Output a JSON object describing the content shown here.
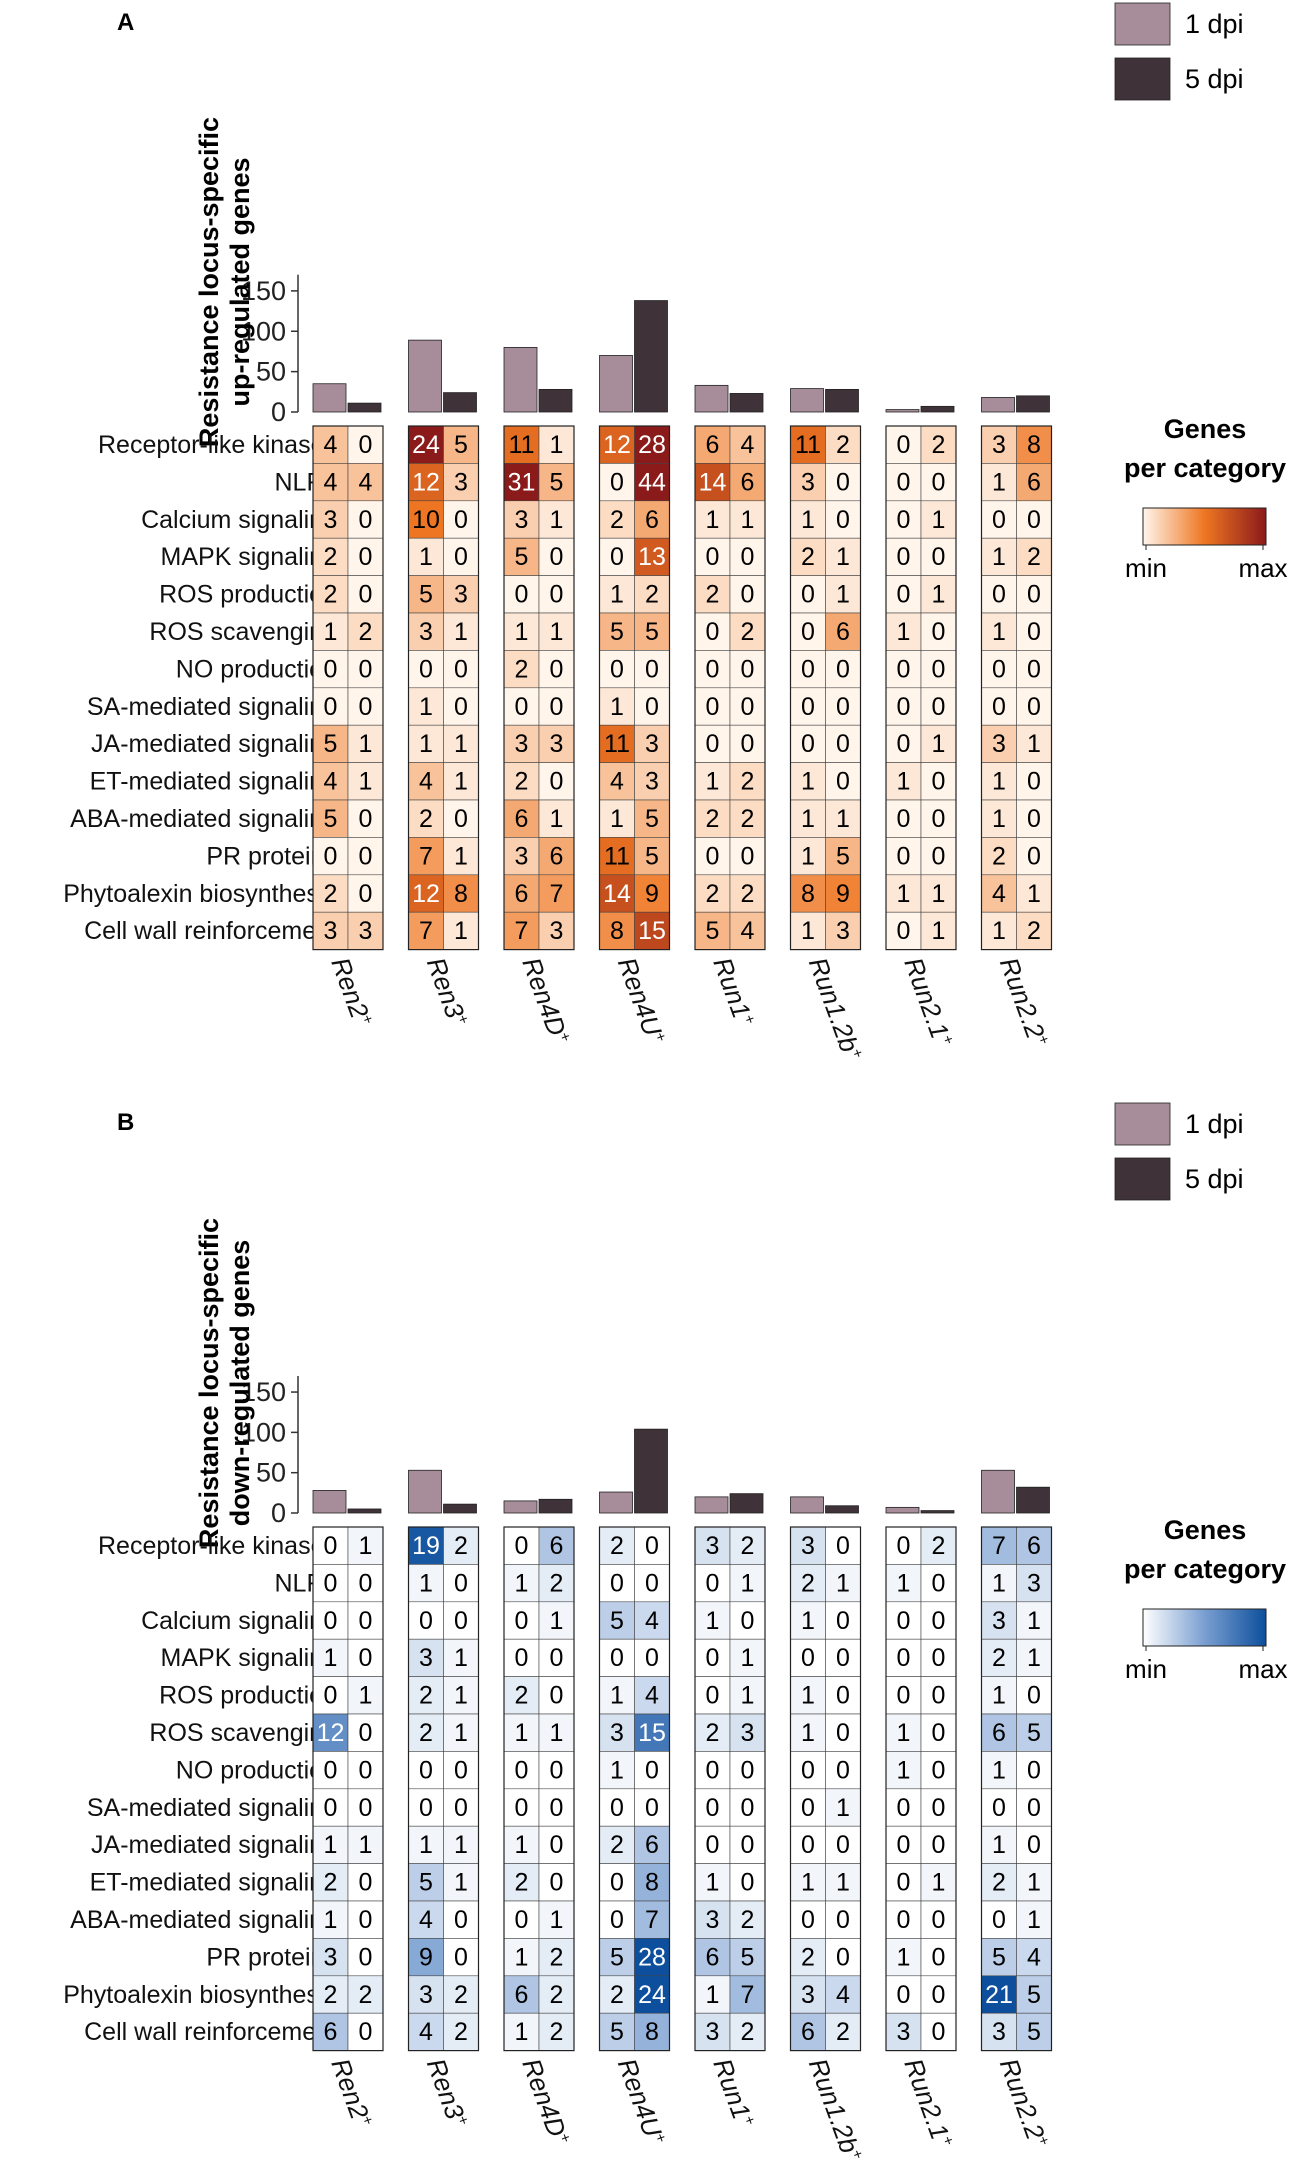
{
  "legend": {
    "bar_labels": [
      "1 dpi",
      "5 dpi"
    ],
    "bar_colors": [
      "#a78d99",
      "#3f3238"
    ],
    "heat_title": [
      "Genes",
      "per category"
    ],
    "heat_min_label": "min",
    "heat_max_label": "max"
  },
  "loci": [
    "Ren2",
    "Ren3",
    "Ren4D",
    "Ren4U",
    "Run1",
    "Run1.2b",
    "Run2.1",
    "Run2.2"
  ],
  "locus_superscript": "+",
  "categories": [
    "Receptor-like kinases",
    "NLRs",
    "Calcium signaling",
    "MAPK signaling",
    "ROS production",
    "ROS scavenging",
    "NO production",
    "SA-mediated signaling",
    "JA-mediated signaling",
    "ET-mediated signaling",
    "ABA-mediated signaling",
    "PR proteins",
    "Phytoalexin biosynthesis",
    "Cell wall reinforcement"
  ],
  "chart_data": [
    {
      "type": "bar+heatmap",
      "panel_label": "A",
      "ylabel": [
        "Resistance locus-specific",
        "up-regulated genes"
      ],
      "ylim": [
        0,
        160
      ],
      "yticks": [
        0,
        50,
        100,
        150
      ],
      "series": [
        {
          "name": "1 dpi",
          "values": [
            35,
            89,
            80,
            70,
            33,
            29,
            3,
            18
          ]
        },
        {
          "name": "5 dpi",
          "values": [
            11,
            24,
            28,
            138,
            23,
            28,
            7,
            20
          ]
        }
      ],
      "color_scale": [
        "#fff5eb",
        "#ee7622",
        "#8b1a1a"
      ],
      "heatmap": [
        [
          [
            4,
            0
          ],
          [
            24,
            5
          ],
          [
            11,
            1
          ],
          [
            12,
            28
          ],
          [
            6,
            4
          ],
          [
            11,
            2
          ],
          [
            0,
            2
          ],
          [
            3,
            8
          ]
        ],
        [
          [
            4,
            4
          ],
          [
            12,
            3
          ],
          [
            31,
            5
          ],
          [
            0,
            44
          ],
          [
            14,
            6
          ],
          [
            3,
            0
          ],
          [
            0,
            0
          ],
          [
            1,
            6
          ]
        ],
        [
          [
            3,
            0
          ],
          [
            10,
            0
          ],
          [
            3,
            1
          ],
          [
            2,
            6
          ],
          [
            1,
            1
          ],
          [
            1,
            0
          ],
          [
            0,
            1
          ],
          [
            0,
            0
          ]
        ],
        [
          [
            2,
            0
          ],
          [
            1,
            0
          ],
          [
            5,
            0
          ],
          [
            0,
            13
          ],
          [
            0,
            0
          ],
          [
            2,
            1
          ],
          [
            0,
            0
          ],
          [
            1,
            2
          ]
        ],
        [
          [
            2,
            0
          ],
          [
            5,
            3
          ],
          [
            0,
            0
          ],
          [
            1,
            2
          ],
          [
            2,
            0
          ],
          [
            0,
            1
          ],
          [
            0,
            1
          ],
          [
            0,
            0
          ]
        ],
        [
          [
            1,
            2
          ],
          [
            3,
            1
          ],
          [
            1,
            1
          ],
          [
            5,
            5
          ],
          [
            0,
            2
          ],
          [
            0,
            6
          ],
          [
            1,
            0
          ],
          [
            1,
            0
          ]
        ],
        [
          [
            0,
            0
          ],
          [
            0,
            0
          ],
          [
            2,
            0
          ],
          [
            0,
            0
          ],
          [
            0,
            0
          ],
          [
            0,
            0
          ],
          [
            0,
            0
          ],
          [
            0,
            0
          ]
        ],
        [
          [
            0,
            0
          ],
          [
            1,
            0
          ],
          [
            0,
            0
          ],
          [
            1,
            0
          ],
          [
            0,
            0
          ],
          [
            0,
            0
          ],
          [
            0,
            0
          ],
          [
            0,
            0
          ]
        ],
        [
          [
            5,
            1
          ],
          [
            1,
            1
          ],
          [
            3,
            3
          ],
          [
            11,
            3
          ],
          [
            0,
            0
          ],
          [
            0,
            0
          ],
          [
            0,
            1
          ],
          [
            3,
            1
          ]
        ],
        [
          [
            4,
            1
          ],
          [
            4,
            1
          ],
          [
            2,
            0
          ],
          [
            4,
            3
          ],
          [
            1,
            2
          ],
          [
            1,
            0
          ],
          [
            1,
            0
          ],
          [
            1,
            0
          ]
        ],
        [
          [
            5,
            0
          ],
          [
            2,
            0
          ],
          [
            6,
            1
          ],
          [
            1,
            5
          ],
          [
            2,
            2
          ],
          [
            1,
            1
          ],
          [
            0,
            0
          ],
          [
            1,
            0
          ]
        ],
        [
          [
            0,
            0
          ],
          [
            7,
            1
          ],
          [
            3,
            6
          ],
          [
            11,
            5
          ],
          [
            0,
            0
          ],
          [
            1,
            5
          ],
          [
            0,
            0
          ],
          [
            2,
            0
          ]
        ],
        [
          [
            2,
            0
          ],
          [
            12,
            8
          ],
          [
            6,
            7
          ],
          [
            14,
            9
          ],
          [
            2,
            2
          ],
          [
            8,
            9
          ],
          [
            1,
            1
          ],
          [
            4,
            1
          ]
        ],
        [
          [
            3,
            3
          ],
          [
            7,
            1
          ],
          [
            7,
            3
          ],
          [
            8,
            15
          ],
          [
            5,
            4
          ],
          [
            1,
            3
          ],
          [
            0,
            1
          ],
          [
            1,
            2
          ]
        ]
      ]
    },
    {
      "type": "bar+heatmap",
      "panel_label": "B",
      "ylabel": [
        "Resistance locus-specific",
        "down-regulated genes"
      ],
      "ylim": [
        0,
        160
      ],
      "yticks": [
        0,
        50,
        100,
        150
      ],
      "series": [
        {
          "name": "1 dpi",
          "values": [
            28,
            53,
            15,
            26,
            20,
            20,
            7,
            53
          ]
        },
        {
          "name": "5 dpi",
          "values": [
            5,
            11,
            17,
            104,
            24,
            9,
            3,
            32
          ]
        }
      ],
      "color_scale": [
        "#ffffff",
        "#7a9fd1",
        "#0d4f9c"
      ],
      "heatmap": [
        [
          [
            0,
            1
          ],
          [
            19,
            2
          ],
          [
            0,
            6
          ],
          [
            2,
            0
          ],
          [
            3,
            2
          ],
          [
            3,
            0
          ],
          [
            0,
            2
          ],
          [
            7,
            6
          ]
        ],
        [
          [
            0,
            0
          ],
          [
            1,
            0
          ],
          [
            1,
            2
          ],
          [
            0,
            0
          ],
          [
            0,
            1
          ],
          [
            2,
            1
          ],
          [
            1,
            0
          ],
          [
            1,
            3
          ]
        ],
        [
          [
            0,
            0
          ],
          [
            0,
            0
          ],
          [
            0,
            1
          ],
          [
            5,
            4
          ],
          [
            1,
            0
          ],
          [
            1,
            0
          ],
          [
            0,
            0
          ],
          [
            3,
            1
          ]
        ],
        [
          [
            1,
            0
          ],
          [
            3,
            1
          ],
          [
            0,
            0
          ],
          [
            0,
            0
          ],
          [
            0,
            1
          ],
          [
            0,
            0
          ],
          [
            0,
            0
          ],
          [
            2,
            1
          ]
        ],
        [
          [
            0,
            1
          ],
          [
            2,
            1
          ],
          [
            2,
            0
          ],
          [
            1,
            4
          ],
          [
            0,
            1
          ],
          [
            1,
            0
          ],
          [
            0,
            0
          ],
          [
            1,
            0
          ]
        ],
        [
          [
            12,
            0
          ],
          [
            2,
            1
          ],
          [
            1,
            1
          ],
          [
            3,
            15
          ],
          [
            2,
            3
          ],
          [
            1,
            0
          ],
          [
            1,
            0
          ],
          [
            6,
            5
          ]
        ],
        [
          [
            0,
            0
          ],
          [
            0,
            0
          ],
          [
            0,
            0
          ],
          [
            1,
            0
          ],
          [
            0,
            0
          ],
          [
            0,
            0
          ],
          [
            1,
            0
          ],
          [
            1,
            0
          ]
        ],
        [
          [
            0,
            0
          ],
          [
            0,
            0
          ],
          [
            0,
            0
          ],
          [
            0,
            0
          ],
          [
            0,
            0
          ],
          [
            0,
            1
          ],
          [
            0,
            0
          ],
          [
            0,
            0
          ]
        ],
        [
          [
            1,
            1
          ],
          [
            1,
            1
          ],
          [
            1,
            0
          ],
          [
            2,
            6
          ],
          [
            0,
            0
          ],
          [
            0,
            0
          ],
          [
            0,
            0
          ],
          [
            1,
            0
          ]
        ],
        [
          [
            2,
            0
          ],
          [
            5,
            1
          ],
          [
            2,
            0
          ],
          [
            0,
            8
          ],
          [
            1,
            0
          ],
          [
            1,
            1
          ],
          [
            0,
            1
          ],
          [
            2,
            1
          ]
        ],
        [
          [
            1,
            0
          ],
          [
            4,
            0
          ],
          [
            0,
            1
          ],
          [
            0,
            7
          ],
          [
            3,
            2
          ],
          [
            0,
            0
          ],
          [
            0,
            0
          ],
          [
            0,
            1
          ]
        ],
        [
          [
            3,
            0
          ],
          [
            9,
            0
          ],
          [
            1,
            2
          ],
          [
            5,
            28
          ],
          [
            6,
            5
          ],
          [
            2,
            0
          ],
          [
            1,
            0
          ],
          [
            5,
            4
          ]
        ],
        [
          [
            2,
            2
          ],
          [
            3,
            2
          ],
          [
            6,
            2
          ],
          [
            2,
            24
          ],
          [
            1,
            7
          ],
          [
            3,
            4
          ],
          [
            0,
            0
          ],
          [
            21,
            5
          ]
        ],
        [
          [
            6,
            0
          ],
          [
            4,
            2
          ],
          [
            1,
            2
          ],
          [
            5,
            8
          ],
          [
            3,
            2
          ],
          [
            6,
            2
          ],
          [
            3,
            0
          ],
          [
            3,
            5
          ]
        ]
      ]
    }
  ]
}
